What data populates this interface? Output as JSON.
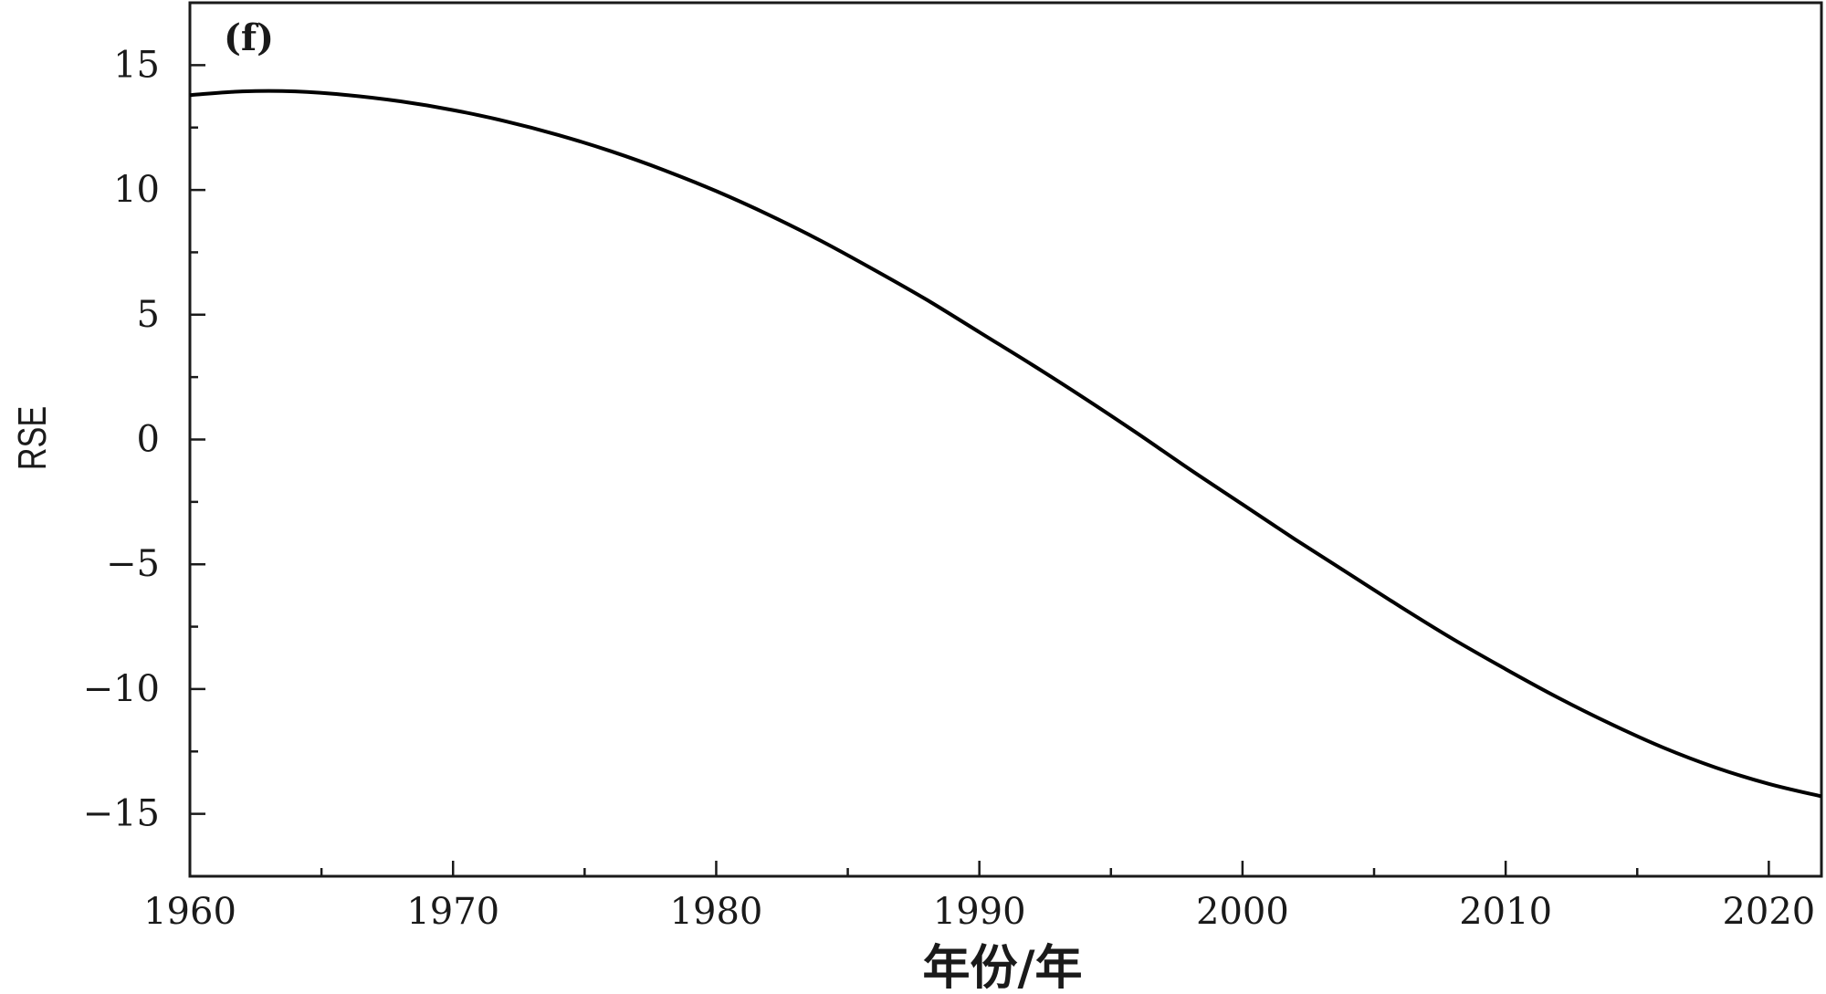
{
  "chart_data": {
    "type": "line",
    "panel_label": "(f)",
    "xlabel": "年份/年",
    "ylabel": "RSE",
    "xlim": [
      1960,
      2022
    ],
    "ylim": [
      -17.5,
      17.5
    ],
    "x_ticks": [
      1960,
      1970,
      1980,
      1990,
      2000,
      2010,
      2020
    ],
    "x_tick_labels": [
      "1960",
      "1970",
      "1980",
      "1990",
      "2000",
      "2010",
      "2020"
    ],
    "y_ticks": [
      15,
      10,
      5,
      0,
      -5,
      -10,
      -15
    ],
    "y_tick_labels": [
      "15",
      "10",
      "5",
      "0",
      "−5",
      "−10",
      "−15"
    ],
    "grid": false,
    "series": [
      {
        "color": "#000000",
        "x": [
          1960,
          1962,
          1964,
          1966,
          1968,
          1970,
          1972,
          1974,
          1976,
          1978,
          1980,
          1982,
          1984,
          1986,
          1988,
          1990,
          1992,
          1994,
          1996,
          1998,
          2000,
          2002,
          2004,
          2006,
          2008,
          2010,
          2012,
          2014,
          2016,
          2018,
          2020,
          2022
        ],
        "y": [
          13.8,
          13.95,
          13.95,
          13.8,
          13.55,
          13.2,
          12.75,
          12.2,
          11.55,
          10.8,
          9.95,
          9.0,
          7.95,
          6.8,
          5.6,
          4.3,
          3.0,
          1.65,
          0.25,
          -1.2,
          -2.6,
          -4.0,
          -5.35,
          -6.7,
          -8.0,
          -9.2,
          -10.35,
          -11.4,
          -12.35,
          -13.15,
          -13.8,
          -14.3
        ]
      }
    ]
  }
}
